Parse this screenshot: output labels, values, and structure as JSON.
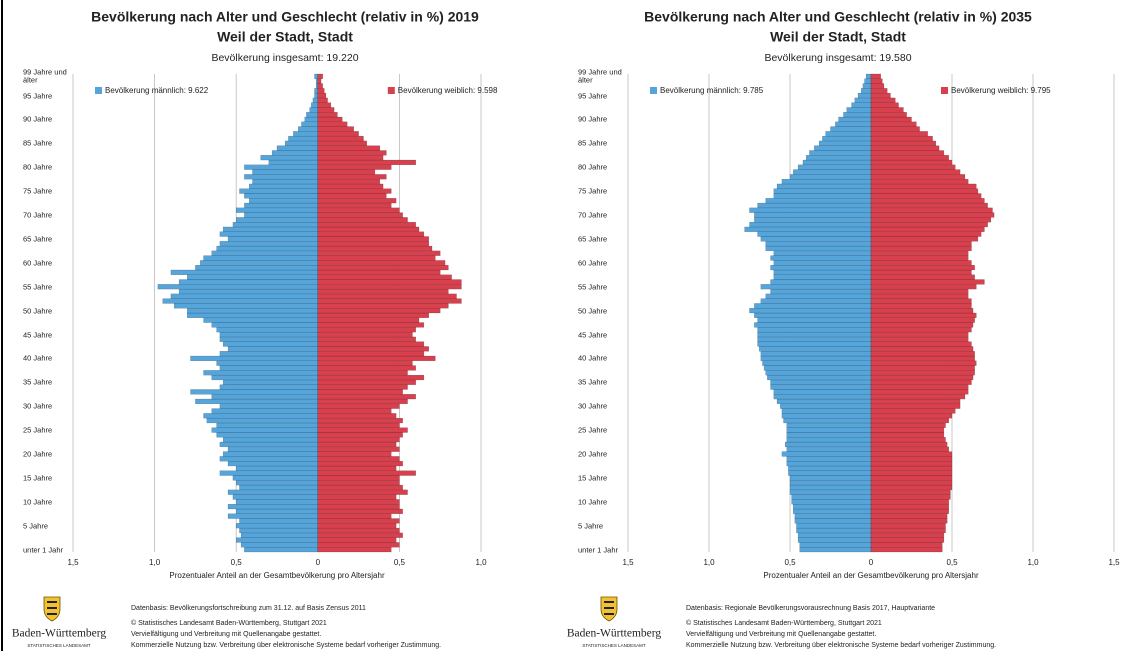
{
  "chart_data": [
    {
      "type": "pyramid",
      "title": "Bevölkerung nach Alter und Geschlecht (relativ in %) 2019",
      "subtitle": "Weil der Stadt, Stadt",
      "total": "Bevölkerung insgesamt: 19.220",
      "x_label": "Prozentualer Anteil an der Gesamtbevölkerung pro Altersjahr",
      "categories": [
        "unter 1 Jahr",
        null,
        null,
        null,
        null,
        "5 Jahre",
        null,
        null,
        null,
        null,
        "10 Jahre",
        null,
        null,
        null,
        null,
        "15 Jahre",
        null,
        null,
        null,
        null,
        "20 Jahre",
        null,
        null,
        null,
        null,
        "25 Jahre",
        null,
        null,
        null,
        null,
        "30 Jahre",
        null,
        null,
        null,
        null,
        "35 Jahre",
        null,
        null,
        null,
        null,
        "40 Jahre",
        null,
        null,
        null,
        null,
        "45 Jahre",
        null,
        null,
        null,
        null,
        "50 Jahre",
        null,
        null,
        null,
        null,
        "55 Jahre",
        null,
        null,
        null,
        null,
        "60 Jahre",
        null,
        null,
        null,
        null,
        "65 Jahre",
        null,
        null,
        null,
        null,
        "70 Jahre",
        null,
        null,
        null,
        null,
        "75 Jahre",
        null,
        null,
        null,
        null,
        "80 Jahre",
        null,
        null,
        null,
        null,
        "85 Jahre",
        null,
        null,
        null,
        null,
        "90 Jahre",
        null,
        null,
        null,
        null,
        "95 Jahre",
        null,
        null,
        null,
        "99 Jahre und älter"
      ],
      "series": [
        {
          "name": "Bevölkerung männlich: 9.622",
          "side": "left",
          "color": "#55a5db",
          "values": [
            0.45,
            0.47,
            0.5,
            0.47,
            0.48,
            0.5,
            0.48,
            0.55,
            0.5,
            0.55,
            0.5,
            0.52,
            0.55,
            0.48,
            0.5,
            0.52,
            0.6,
            0.5,
            0.55,
            0.6,
            0.58,
            0.55,
            0.6,
            0.58,
            0.62,
            0.65,
            0.62,
            0.68,
            0.7,
            0.65,
            0.6,
            0.75,
            0.65,
            0.78,
            0.6,
            0.58,
            0.65,
            0.7,
            0.6,
            0.62,
            0.78,
            0.6,
            0.55,
            0.58,
            0.6,
            0.6,
            0.62,
            0.65,
            0.7,
            0.8,
            0.8,
            0.88,
            0.95,
            0.9,
            0.85,
            0.98,
            0.85,
            0.8,
            0.9,
            0.75,
            0.72,
            0.7,
            0.65,
            0.62,
            0.6,
            0.55,
            0.6,
            0.58,
            0.52,
            0.5,
            0.45,
            0.5,
            0.45,
            0.42,
            0.45,
            0.48,
            0.42,
            0.4,
            0.45,
            0.4,
            0.45,
            0.3,
            0.35,
            0.28,
            0.25,
            0.2,
            0.18,
            0.15,
            0.12,
            0.1,
            0.08,
            0.07,
            0.05,
            0.04,
            0.03,
            0.02,
            0.02,
            0.01,
            0.01,
            0.02
          ]
        },
        {
          "name": "Bevölkerung weiblich: 9.598",
          "side": "right",
          "color": "#d8404e",
          "values": [
            0.45,
            0.5,
            0.48,
            0.52,
            0.5,
            0.48,
            0.5,
            0.45,
            0.52,
            0.5,
            0.5,
            0.48,
            0.55,
            0.52,
            0.5,
            0.5,
            0.6,
            0.48,
            0.52,
            0.5,
            0.45,
            0.5,
            0.48,
            0.5,
            0.52,
            0.55,
            0.5,
            0.52,
            0.48,
            0.45,
            0.5,
            0.55,
            0.6,
            0.52,
            0.55,
            0.6,
            0.65,
            0.55,
            0.6,
            0.58,
            0.72,
            0.65,
            0.68,
            0.65,
            0.6,
            0.58,
            0.6,
            0.65,
            0.62,
            0.68,
            0.75,
            0.8,
            0.88,
            0.85,
            0.8,
            0.88,
            0.88,
            0.82,
            0.75,
            0.8,
            0.78,
            0.72,
            0.75,
            0.7,
            0.68,
            0.68,
            0.65,
            0.62,
            0.6,
            0.55,
            0.52,
            0.5,
            0.45,
            0.48,
            0.42,
            0.45,
            0.4,
            0.38,
            0.42,
            0.35,
            0.45,
            0.6,
            0.4,
            0.42,
            0.38,
            0.3,
            0.28,
            0.25,
            0.22,
            0.18,
            0.15,
            0.12,
            0.1,
            0.08,
            0.06,
            0.05,
            0.04,
            0.03,
            0.02,
            0.03
          ]
        }
      ],
      "xlim": [
        -1.5,
        1.0
      ],
      "xticks": [
        {
          "value": -1.5,
          "label": "1,5"
        },
        {
          "value": -1.0,
          "label": "1,0"
        },
        {
          "value": -0.5,
          "label": "0,5"
        },
        0,
        {
          "value": 0.5,
          "label": "0,5"
        },
        {
          "value": 1.0,
          "label": "1,0"
        }
      ],
      "grid": true,
      "footer": {
        "logo_name": "Baden-Württemberg",
        "logo_sub": "STATISTISCHES LANDESAMT",
        "lines": [
          "Datenbasis: Bevölkerungsfortschreibung zum 31.12. auf Basis Zensus 2011",
          "© Statistisches Landesamt Baden-Württemberg, Stuttgart 2021",
          "Vervielfältigung und Verbreitung mit Quellenangabe gestattet.",
          "Kommerzielle Nutzung bzw. Verbreitung über elektronische Systeme bedarf vorheriger Zustimmung."
        ]
      }
    },
    {
      "type": "pyramid",
      "title": "Bevölkerung nach Alter und Geschlecht (relativ in %) 2035",
      "subtitle": "Weil der Stadt, Stadt",
      "total": "Bevölkerung insgesamt: 19.580",
      "x_label": "Prozentualer Anteil an der Gesamtbevölkerung pro Altersjahr",
      "categories": [
        "unter 1 Jahr",
        null,
        null,
        null,
        null,
        "5 Jahre",
        null,
        null,
        null,
        null,
        "10 Jahre",
        null,
        null,
        null,
        null,
        "15 Jahre",
        null,
        null,
        null,
        null,
        "20 Jahre",
        null,
        null,
        null,
        null,
        "25 Jahre",
        null,
        null,
        null,
        null,
        "30 Jahre",
        null,
        null,
        null,
        null,
        "35 Jahre",
        null,
        null,
        null,
        null,
        "40 Jahre",
        null,
        null,
        null,
        null,
        "45 Jahre",
        null,
        null,
        null,
        null,
        "50 Jahre",
        null,
        null,
        null,
        null,
        "55 Jahre",
        null,
        null,
        null,
        null,
        "60 Jahre",
        null,
        null,
        null,
        null,
        "65 Jahre",
        null,
        null,
        null,
        null,
        "70 Jahre",
        null,
        null,
        null,
        null,
        "75 Jahre",
        null,
        null,
        null,
        null,
        "80 Jahre",
        null,
        null,
        null,
        null,
        "85 Jahre",
        null,
        null,
        null,
        null,
        "90 Jahre",
        null,
        null,
        null,
        null,
        "95 Jahre",
        null,
        null,
        null,
        "99 Jahre und älter"
      ],
      "series": [
        {
          "name": "Bevölkerung männlich: 9.785",
          "side": "left",
          "color": "#55a5db",
          "values": [
            0.44,
            0.44,
            0.45,
            0.45,
            0.46,
            0.46,
            0.47,
            0.47,
            0.48,
            0.48,
            0.49,
            0.49,
            0.5,
            0.5,
            0.5,
            0.5,
            0.51,
            0.51,
            0.52,
            0.52,
            0.55,
            0.52,
            0.53,
            0.52,
            0.52,
            0.52,
            0.52,
            0.54,
            0.55,
            0.55,
            0.56,
            0.58,
            0.6,
            0.6,
            0.62,
            0.62,
            0.64,
            0.65,
            0.66,
            0.67,
            0.68,
            0.68,
            0.69,
            0.7,
            0.7,
            0.7,
            0.7,
            0.72,
            0.7,
            0.72,
            0.75,
            0.72,
            0.68,
            0.65,
            0.62,
            0.68,
            0.62,
            0.6,
            0.6,
            0.62,
            0.6,
            0.62,
            0.6,
            0.65,
            0.65,
            0.68,
            0.7,
            0.78,
            0.75,
            0.72,
            0.72,
            0.75,
            0.7,
            0.65,
            0.6,
            0.6,
            0.58,
            0.55,
            0.5,
            0.48,
            0.45,
            0.42,
            0.4,
            0.38,
            0.35,
            0.32,
            0.3,
            0.28,
            0.25,
            0.22,
            0.2,
            0.17,
            0.15,
            0.12,
            0.1,
            0.08,
            0.06,
            0.05,
            0.04,
            0.03
          ]
        },
        {
          "name": "Bevölkerung weiblich: 9.795",
          "side": "right",
          "color": "#d8404e",
          "values": [
            0.44,
            0.44,
            0.45,
            0.45,
            0.46,
            0.46,
            0.47,
            0.47,
            0.48,
            0.48,
            0.48,
            0.49,
            0.49,
            0.5,
            0.5,
            0.5,
            0.5,
            0.5,
            0.5,
            0.5,
            0.5,
            0.48,
            0.47,
            0.46,
            0.45,
            0.45,
            0.46,
            0.48,
            0.5,
            0.52,
            0.55,
            0.55,
            0.58,
            0.6,
            0.6,
            0.62,
            0.63,
            0.64,
            0.64,
            0.65,
            0.64,
            0.64,
            0.63,
            0.62,
            0.6,
            0.6,
            0.62,
            0.63,
            0.64,
            0.65,
            0.63,
            0.62,
            0.62,
            0.6,
            0.6,
            0.65,
            0.7,
            0.64,
            0.62,
            0.64,
            0.62,
            0.6,
            0.6,
            0.62,
            0.62,
            0.66,
            0.68,
            0.7,
            0.72,
            0.74,
            0.76,
            0.75,
            0.72,
            0.7,
            0.68,
            0.66,
            0.65,
            0.6,
            0.58,
            0.55,
            0.52,
            0.5,
            0.48,
            0.45,
            0.42,
            0.4,
            0.38,
            0.35,
            0.3,
            0.28,
            0.25,
            0.22,
            0.2,
            0.17,
            0.15,
            0.12,
            0.1,
            0.08,
            0.07,
            0.06
          ]
        }
      ],
      "xlim": [
        -1.5,
        1.5
      ],
      "xticks": [
        {
          "value": -1.5,
          "label": "1,5"
        },
        {
          "value": -1.0,
          "label": "1,0"
        },
        {
          "value": -0.5,
          "label": "0,5"
        },
        0,
        {
          "value": 0.5,
          "label": "0,5"
        },
        {
          "value": 1.0,
          "label": "1,0"
        },
        {
          "value": 1.5,
          "label": "1,5"
        }
      ],
      "grid": true,
      "footer": {
        "logo_name": "Baden-Württemberg",
        "logo_sub": "STATISTISCHES LANDESAMT",
        "lines": [
          "Datenbasis: Regionale Bevölkerungsvorausrechnung Basis 2017, Hauptvariante",
          "© Statistisches Landesamt Baden-Württemberg, Stuttgart 2021",
          "Vervielfältigung und Verbreitung mit Quellenangabe gestattet.",
          "Kommerzielle Nutzung bzw. Verbreitung über elektronische Systeme bedarf vorheriger Zustimmung."
        ]
      }
    }
  ]
}
